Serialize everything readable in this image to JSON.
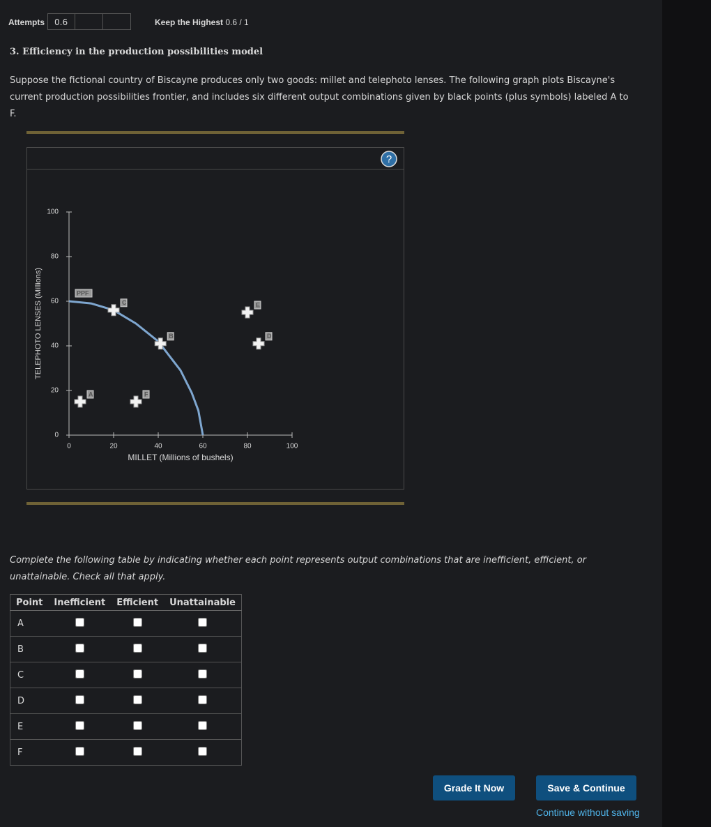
{
  "header": {
    "attempts_label": "Attempts",
    "attempts_value": "0.6",
    "keep_label": "Keep the Highest",
    "score": "0.6 / 1"
  },
  "question": {
    "title": "3. Efficiency in the production possibilities model",
    "intro": "Suppose the fictional country of Biscayne produces only two goods: millet and telephoto lenses. The following graph plots Biscayne's current production possibilities frontier, and includes six different output combinations given by black points (plus symbols) labeled A to F.",
    "instruction": "Complete the following table by indicating whether each point represents output combinations that are inefficient, efficient, or unattainable. Check all that apply."
  },
  "chart_data": {
    "type": "scatter",
    "help": "?",
    "xlabel": "MILLET (Millions of bushels)",
    "ylabel": "TELEPHOTO LENSES (Millions)",
    "xlim": [
      0,
      100
    ],
    "ylim": [
      0,
      100
    ],
    "xticks": [
      0,
      20,
      40,
      60,
      80,
      100
    ],
    "yticks": [
      0,
      20,
      40,
      60,
      80,
      100
    ],
    "curve_label": "PPF",
    "curve_color": "#7ea6cf",
    "ppf": {
      "x": [
        0,
        10,
        20,
        30,
        40,
        50,
        55,
        58,
        60
      ],
      "y": [
        60,
        59,
        56,
        50,
        42,
        29,
        19,
        11,
        0
      ]
    },
    "point_color": "#f2f2f2",
    "points": [
      {
        "label": "A",
        "x": 5,
        "y": 15
      },
      {
        "label": "B",
        "x": 41,
        "y": 41
      },
      {
        "label": "C",
        "x": 20,
        "y": 56
      },
      {
        "label": "D",
        "x": 85,
        "y": 41
      },
      {
        "label": "E",
        "x": 80,
        "y": 55
      },
      {
        "label": "F",
        "x": 30,
        "y": 15
      }
    ]
  },
  "table": {
    "headers": [
      "Point",
      "Inefficient",
      "Efficient",
      "Unattainable"
    ],
    "rows": [
      "A",
      "B",
      "C",
      "D",
      "E",
      "F"
    ]
  },
  "buttons": {
    "grade": "Grade It Now",
    "save": "Save & Continue",
    "skip": "Continue without saving"
  }
}
